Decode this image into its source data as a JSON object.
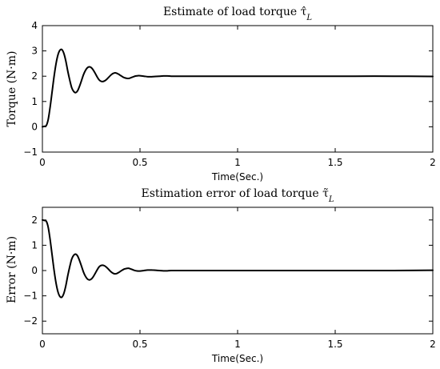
{
  "chart_data": [
    {
      "type": "line",
      "title": "Estimate of load torque τ̂",
      "title_sub": "L",
      "xlabel": "Time(Sec.)",
      "ylabel": "Torque (N·m)",
      "xlim": [
        0,
        2
      ],
      "ylim": [
        -1,
        4
      ],
      "xticks": [
        0,
        0.5,
        1,
        1.5,
        2
      ],
      "xtick_labels": [
        "0",
        "0.5",
        "1",
        "1.5",
        "2"
      ],
      "yticks": [
        -1,
        0,
        1,
        2,
        3,
        4
      ],
      "ytick_labels": [
        "−1",
        "0",
        "1",
        "2",
        "3",
        "4"
      ],
      "grid": false,
      "line_color": "#000000",
      "series": [
        {
          "x": [
            0,
            0.01,
            0.02,
            0.03,
            0.04,
            0.05,
            0.06,
            0.07,
            0.08,
            0.09,
            0.1,
            0.11,
            0.12,
            0.13,
            0.14,
            0.15,
            0.16,
            0.17,
            0.18,
            0.19,
            0.2,
            0.21,
            0.22,
            0.23,
            0.24,
            0.25,
            0.26,
            0.27,
            0.28,
            0.29,
            0.3,
            0.31,
            0.32,
            0.33,
            0.34,
            0.35,
            0.36,
            0.37,
            0.38,
            0.39,
            0.4,
            0.41,
            0.42,
            0.43,
            0.44,
            0.45,
            0.46,
            0.47,
            0.48,
            0.49,
            0.5,
            0.52,
            0.54,
            0.56,
            0.58,
            0.6,
            0.62,
            0.64,
            0.66,
            0.68,
            0.7,
            0.75,
            0.8,
            0.9,
            1.0,
            1.2,
            1.4,
            1.6,
            1.8,
            2.0
          ],
          "y": [
            0,
            0.02,
            0.05,
            0.3,
            0.8,
            1.4,
            2.0,
            2.5,
            2.85,
            3.03,
            3.05,
            2.9,
            2.6,
            2.2,
            1.85,
            1.55,
            1.4,
            1.35,
            1.42,
            1.6,
            1.82,
            2.05,
            2.22,
            2.33,
            2.37,
            2.34,
            2.25,
            2.12,
            1.98,
            1.86,
            1.8,
            1.79,
            1.82,
            1.88,
            1.96,
            2.04,
            2.1,
            2.13,
            2.12,
            2.08,
            2.03,
            1.98,
            1.94,
            1.92,
            1.91,
            1.93,
            1.96,
            1.99,
            2.01,
            2.02,
            2.02,
            2.0,
            1.98,
            1.98,
            1.99,
            2.0,
            2.01,
            2.01,
            2.0,
            2.0,
            2.0,
            2.0,
            2.0,
            2.0,
            2.0,
            2.0,
            2.0,
            2.0,
            2.0,
            1.99
          ]
        }
      ]
    },
    {
      "type": "line",
      "title": "Estimation error of load torque τ̃",
      "title_sub": "L",
      "xlabel": "Time(Sec.)",
      "ylabel": "Error (N·m)",
      "xlim": [
        0,
        2
      ],
      "ylim": [
        -2.5,
        2.5
      ],
      "xticks": [
        0,
        0.5,
        1,
        1.5,
        2
      ],
      "xtick_labels": [
        "0",
        "0.5",
        "1",
        "1.5",
        "2"
      ],
      "yticks": [
        -2,
        -1,
        0,
        1,
        2
      ],
      "ytick_labels": [
        "−2",
        "−1",
        "0",
        "1",
        "2"
      ],
      "grid": false,
      "line_color": "#000000",
      "series": [
        {
          "x": [
            0,
            0.01,
            0.02,
            0.03,
            0.04,
            0.05,
            0.06,
            0.07,
            0.08,
            0.09,
            0.1,
            0.11,
            0.12,
            0.13,
            0.14,
            0.15,
            0.16,
            0.17,
            0.18,
            0.19,
            0.2,
            0.21,
            0.22,
            0.23,
            0.24,
            0.25,
            0.26,
            0.27,
            0.28,
            0.29,
            0.3,
            0.31,
            0.32,
            0.33,
            0.34,
            0.35,
            0.36,
            0.37,
            0.38,
            0.39,
            0.4,
            0.41,
            0.42,
            0.43,
            0.44,
            0.45,
            0.46,
            0.47,
            0.48,
            0.49,
            0.5,
            0.52,
            0.54,
            0.56,
            0.58,
            0.6,
            0.62,
            0.64,
            0.66,
            0.68,
            0.7,
            0.75,
            0.8,
            0.9,
            1.0,
            1.2,
            1.4,
            1.6,
            1.8,
            2.0
          ],
          "y": [
            2.0,
            1.98,
            1.95,
            1.7,
            1.2,
            0.6,
            0.0,
            -0.5,
            -0.85,
            -1.03,
            -1.05,
            -0.9,
            -0.6,
            -0.2,
            0.15,
            0.45,
            0.6,
            0.65,
            0.58,
            0.4,
            0.18,
            -0.05,
            -0.22,
            -0.33,
            -0.37,
            -0.34,
            -0.25,
            -0.12,
            0.02,
            0.14,
            0.2,
            0.21,
            0.18,
            0.12,
            0.04,
            -0.04,
            -0.1,
            -0.13,
            -0.12,
            -0.08,
            -0.03,
            0.02,
            0.06,
            0.08,
            0.09,
            0.07,
            0.04,
            0.01,
            -0.01,
            -0.02,
            -0.02,
            0.0,
            0.02,
            0.02,
            0.01,
            0.0,
            -0.01,
            -0.01,
            0.0,
            0.0,
            0.0,
            0.0,
            0.0,
            0.0,
            0.0,
            0.0,
            0.0,
            0.0,
            0.0,
            0.01
          ]
        }
      ]
    }
  ]
}
